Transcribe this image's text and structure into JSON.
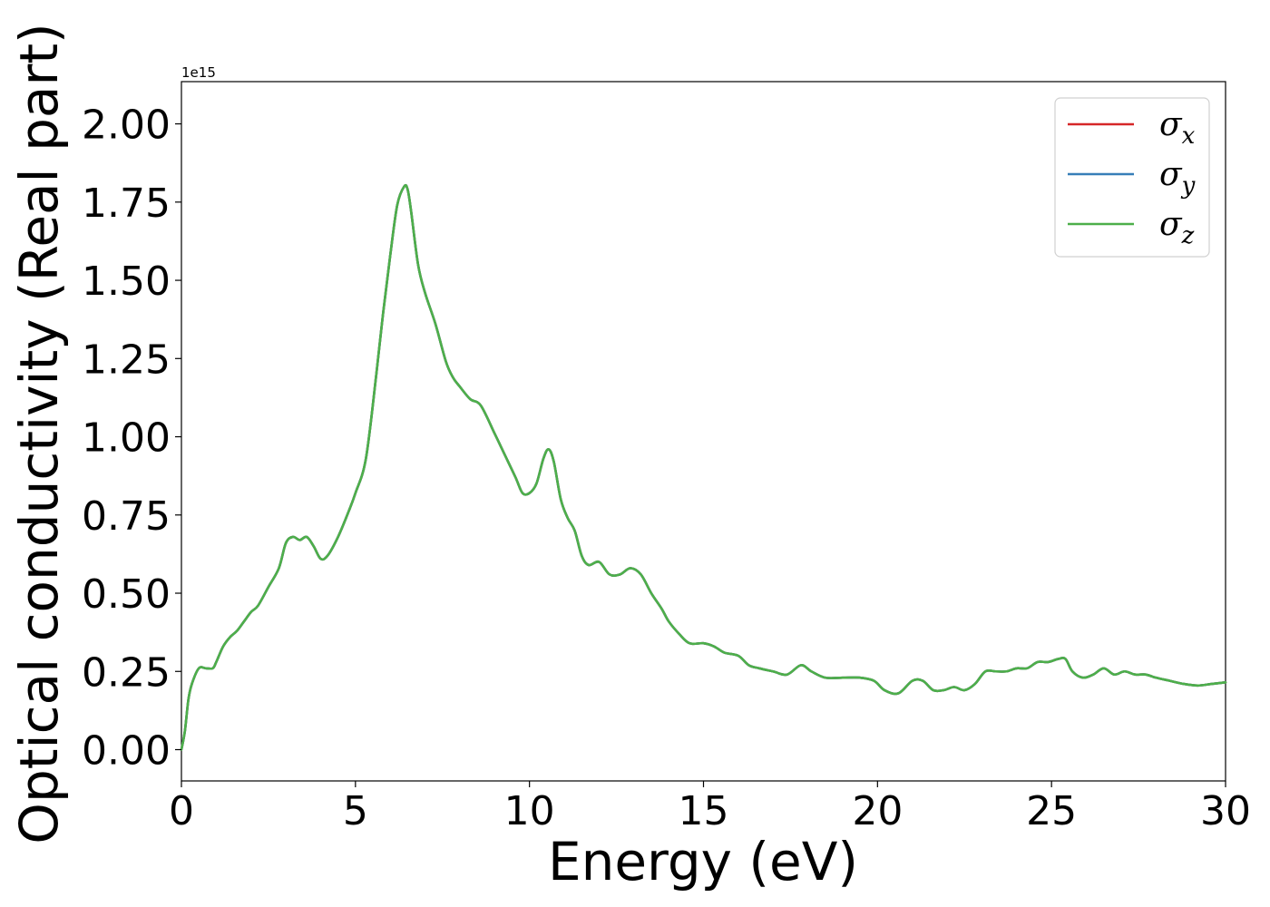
{
  "chart_data": {
    "type": "line",
    "title": "",
    "xlabel": "Energy (eV)",
    "ylabel": "Optical conductivity (Real part)",
    "y_offset_label": "1e15",
    "xlim": [
      0,
      30
    ],
    "ylim": [
      -0.1,
      2.135
    ],
    "x_ticks": [
      0,
      5,
      10,
      15,
      20,
      25,
      30
    ],
    "x_tick_labels": [
      "0",
      "5",
      "10",
      "15",
      "20",
      "25",
      "30"
    ],
    "y_ticks": [
      0,
      0.25,
      0.5,
      0.75,
      1.0,
      1.25,
      1.5,
      1.75,
      2.0
    ],
    "y_tick_labels": [
      "0.00",
      "0.25",
      "0.50",
      "0.75",
      "1.00",
      "1.25",
      "1.50",
      "1.75",
      "2.00"
    ],
    "grid": false,
    "legend_position": "top-right",
    "x": [
      0,
      0.1,
      0.2,
      0.3,
      0.5,
      0.7,
      0.9,
      1.0,
      1.2,
      1.4,
      1.6,
      1.8,
      2.0,
      2.2,
      2.5,
      2.8,
      3.0,
      3.2,
      3.4,
      3.6,
      3.8,
      4.0,
      4.2,
      4.5,
      4.8,
      5.0,
      5.3,
      5.6,
      5.8,
      6.0,
      6.2,
      6.4,
      6.5,
      6.6,
      6.8,
      7.0,
      7.3,
      7.6,
      7.8,
      8.0,
      8.3,
      8.6,
      9.0,
      9.3,
      9.6,
      9.8,
      10.0,
      10.2,
      10.4,
      10.55,
      10.7,
      10.9,
      11.1,
      11.3,
      11.5,
      11.7,
      12.0,
      12.3,
      12.6,
      12.9,
      13.2,
      13.5,
      13.8,
      14.0,
      14.3,
      14.6,
      15.0,
      15.3,
      15.6,
      16.0,
      16.3,
      16.6,
      17.0,
      17.4,
      17.8,
      18.1,
      18.5,
      19.0,
      19.5,
      19.9,
      20.2,
      20.6,
      21.0,
      21.3,
      21.6,
      21.9,
      22.2,
      22.5,
      22.8,
      23.1,
      23.4,
      23.7,
      24.0,
      24.3,
      24.6,
      24.9,
      25.2,
      25.4,
      25.6,
      25.9,
      26.2,
      26.5,
      26.8,
      27.1,
      27.4,
      27.7,
      28.0,
      28.4,
      28.8,
      29.2,
      29.6,
      30.0
    ],
    "series": [
      {
        "name": "σx",
        "color": "#d62728",
        "values": [
          0.0,
          0.06,
          0.16,
          0.21,
          0.26,
          0.26,
          0.26,
          0.28,
          0.33,
          0.36,
          0.38,
          0.41,
          0.44,
          0.46,
          0.52,
          0.58,
          0.66,
          0.68,
          0.67,
          0.68,
          0.65,
          0.61,
          0.62,
          0.68,
          0.76,
          0.82,
          0.93,
          1.2,
          1.4,
          1.58,
          1.74,
          1.8,
          1.79,
          1.72,
          1.55,
          1.46,
          1.36,
          1.24,
          1.19,
          1.16,
          1.12,
          1.1,
          1.01,
          0.94,
          0.87,
          0.82,
          0.82,
          0.85,
          0.93,
          0.96,
          0.92,
          0.8,
          0.74,
          0.7,
          0.62,
          0.59,
          0.6,
          0.56,
          0.56,
          0.58,
          0.56,
          0.5,
          0.45,
          0.41,
          0.37,
          0.34,
          0.34,
          0.33,
          0.31,
          0.3,
          0.27,
          0.26,
          0.25,
          0.24,
          0.27,
          0.25,
          0.23,
          0.23,
          0.23,
          0.22,
          0.19,
          0.18,
          0.22,
          0.22,
          0.19,
          0.19,
          0.2,
          0.19,
          0.21,
          0.25,
          0.25,
          0.25,
          0.26,
          0.26,
          0.28,
          0.28,
          0.29,
          0.29,
          0.25,
          0.23,
          0.24,
          0.26,
          0.24,
          0.25,
          0.24,
          0.24,
          0.23,
          0.22,
          0.21,
          0.205,
          0.21,
          0.215
        ]
      },
      {
        "name": "σy",
        "color": "#377eb8",
        "values": [
          0.0,
          0.06,
          0.16,
          0.21,
          0.26,
          0.26,
          0.26,
          0.28,
          0.33,
          0.36,
          0.38,
          0.41,
          0.44,
          0.46,
          0.52,
          0.58,
          0.66,
          0.68,
          0.67,
          0.68,
          0.65,
          0.61,
          0.62,
          0.68,
          0.76,
          0.82,
          0.93,
          1.2,
          1.4,
          1.58,
          1.74,
          1.8,
          1.79,
          1.72,
          1.55,
          1.46,
          1.36,
          1.24,
          1.19,
          1.16,
          1.12,
          1.1,
          1.01,
          0.94,
          0.87,
          0.82,
          0.82,
          0.85,
          0.93,
          0.96,
          0.92,
          0.8,
          0.74,
          0.7,
          0.62,
          0.59,
          0.6,
          0.56,
          0.56,
          0.58,
          0.56,
          0.5,
          0.45,
          0.41,
          0.37,
          0.34,
          0.34,
          0.33,
          0.31,
          0.3,
          0.27,
          0.26,
          0.25,
          0.24,
          0.27,
          0.25,
          0.23,
          0.23,
          0.23,
          0.22,
          0.19,
          0.18,
          0.22,
          0.22,
          0.19,
          0.19,
          0.2,
          0.19,
          0.21,
          0.25,
          0.25,
          0.25,
          0.26,
          0.26,
          0.28,
          0.28,
          0.29,
          0.29,
          0.25,
          0.23,
          0.24,
          0.26,
          0.24,
          0.25,
          0.24,
          0.24,
          0.23,
          0.22,
          0.21,
          0.205,
          0.21,
          0.215
        ]
      },
      {
        "name": "σz",
        "color": "#4daf4a",
        "values": [
          0.0,
          0.06,
          0.16,
          0.21,
          0.26,
          0.26,
          0.26,
          0.28,
          0.33,
          0.36,
          0.38,
          0.41,
          0.44,
          0.46,
          0.52,
          0.58,
          0.66,
          0.68,
          0.67,
          0.68,
          0.65,
          0.61,
          0.62,
          0.68,
          0.76,
          0.82,
          0.93,
          1.2,
          1.4,
          1.58,
          1.74,
          1.8,
          1.79,
          1.72,
          1.55,
          1.46,
          1.36,
          1.24,
          1.19,
          1.16,
          1.12,
          1.1,
          1.01,
          0.94,
          0.87,
          0.82,
          0.82,
          0.85,
          0.93,
          0.96,
          0.92,
          0.8,
          0.74,
          0.7,
          0.62,
          0.59,
          0.6,
          0.56,
          0.56,
          0.58,
          0.56,
          0.5,
          0.45,
          0.41,
          0.37,
          0.34,
          0.34,
          0.33,
          0.31,
          0.3,
          0.27,
          0.26,
          0.25,
          0.24,
          0.27,
          0.25,
          0.23,
          0.23,
          0.23,
          0.22,
          0.19,
          0.18,
          0.22,
          0.22,
          0.19,
          0.19,
          0.2,
          0.19,
          0.21,
          0.25,
          0.25,
          0.25,
          0.26,
          0.26,
          0.28,
          0.28,
          0.29,
          0.29,
          0.25,
          0.23,
          0.24,
          0.26,
          0.24,
          0.25,
          0.24,
          0.24,
          0.23,
          0.22,
          0.21,
          0.205,
          0.21,
          0.215
        ]
      }
    ],
    "legend": [
      {
        "symbol": "σ",
        "sub": "x",
        "color": "#d62728"
      },
      {
        "symbol": "σ",
        "sub": "y",
        "color": "#377eb8"
      },
      {
        "symbol": "σ",
        "sub": "z",
        "color": "#4daf4a"
      }
    ]
  }
}
